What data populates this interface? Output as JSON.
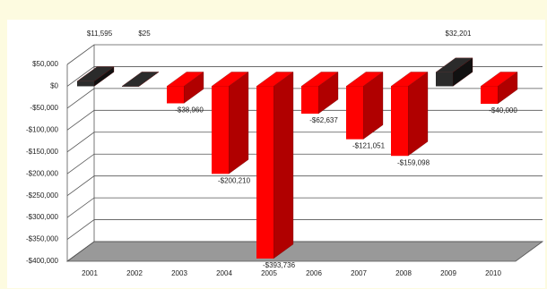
{
  "chart_data": {
    "type": "bar3d",
    "categories": [
      "2001",
      "2002",
      "2003",
      "2004",
      "2005",
      "2006",
      "2007",
      "2008",
      "2009",
      "2010"
    ],
    "values": [
      11595,
      25,
      -38960,
      -200210,
      -393736,
      -62637,
      -121051,
      -159098,
      32201,
      -40000
    ],
    "value_labels": [
      "$11,595",
      "$25",
      "-$38,960",
      "-$200,210",
      "-$393,736",
      "-$62,637",
      "-$121,051",
      "-$159,098",
      "$32,201",
      "-$40,000"
    ],
    "positive_color": "#2b2b2b",
    "negative_color": "#ff0000",
    "ylim": [
      -400000,
      50000
    ],
    "yticks": [
      {
        "value": 50000,
        "label": "$50,000"
      },
      {
        "value": 0,
        "label": "$0"
      },
      {
        "value": -50000,
        "label": "-$50,000"
      },
      {
        "value": -100000,
        "label": "-$100,000"
      },
      {
        "value": -150000,
        "label": "-$150,000"
      },
      {
        "value": -200000,
        "label": "-$200,000"
      },
      {
        "value": -250000,
        "label": "-$250,000"
      },
      {
        "value": -300000,
        "label": "-$300,000"
      },
      {
        "value": -350000,
        "label": "-$350,000"
      },
      {
        "value": -400000,
        "label": "-$400,000"
      }
    ],
    "grid": true
  }
}
